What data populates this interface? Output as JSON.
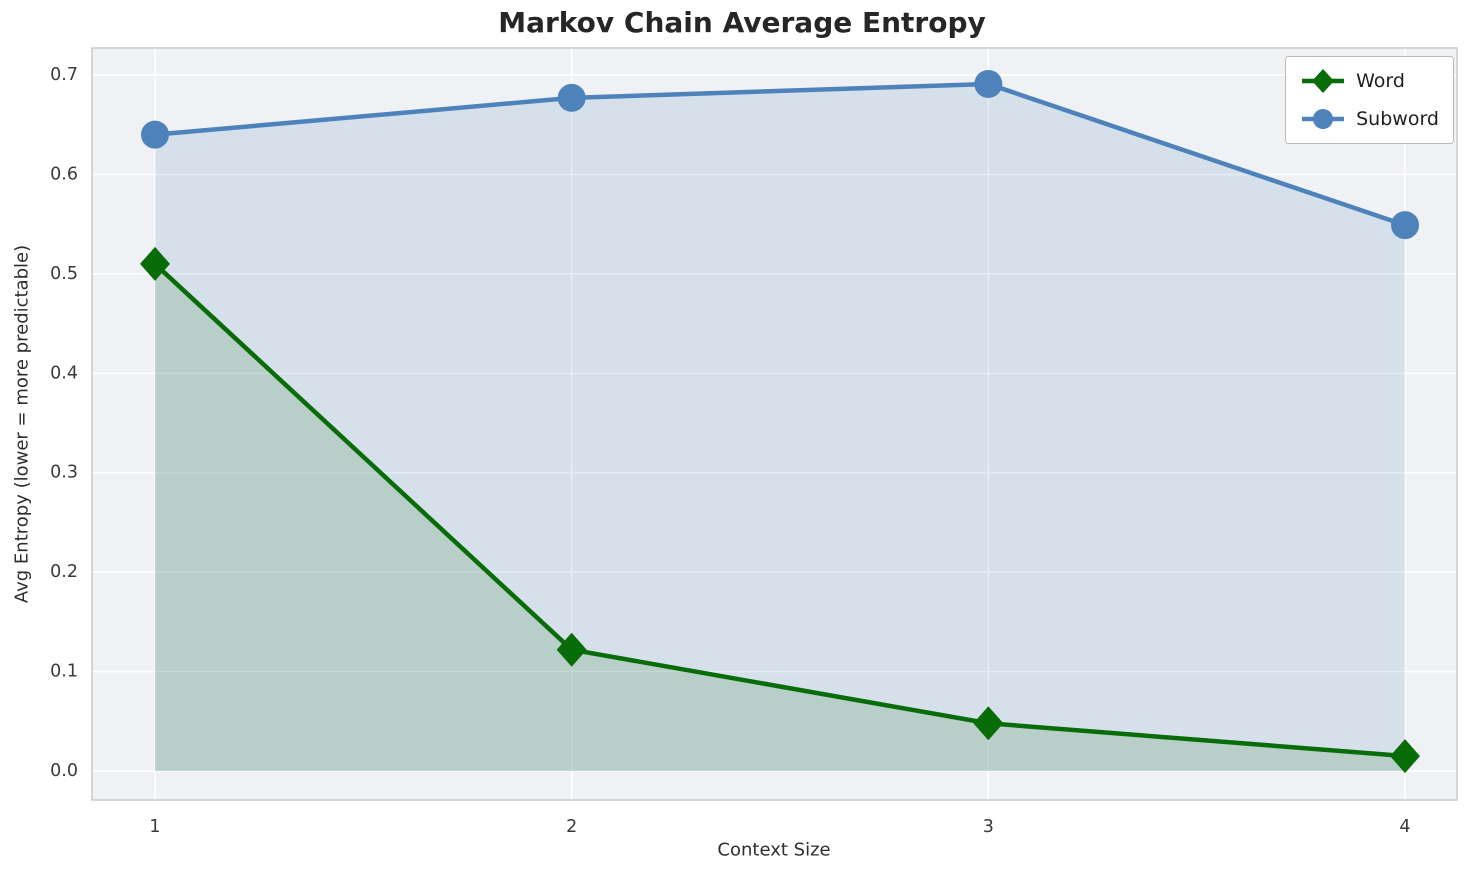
{
  "chart_data": {
    "type": "line",
    "title": "Markov Chain Average Entropy",
    "xlabel": "Context Size",
    "ylabel": "Avg Entropy (lower = more predictable)",
    "x": [
      1,
      2,
      3,
      4
    ],
    "series": [
      {
        "name": "Word",
        "marker": "diamond",
        "color": "#086c08",
        "fill_opacity": 0.15,
        "values": [
          0.51,
          0.122,
          0.048,
          0.015
        ]
      },
      {
        "name": "Subword",
        "marker": "circle",
        "color": "#4d82ba",
        "fill_opacity": 0.15,
        "values": [
          0.64,
          0.677,
          0.691,
          0.549
        ]
      }
    ],
    "xticks": [
      1,
      2,
      3,
      4
    ],
    "yticks": [
      0.0,
      0.1,
      0.2,
      0.3,
      0.4,
      0.5,
      0.6,
      0.7
    ],
    "ytick_labels": [
      "0.0",
      "0.1",
      "0.2",
      "0.3",
      "0.4",
      "0.5",
      "0.6",
      "0.7"
    ],
    "ylim": [
      -0.03,
      0.727
    ],
    "xlim": [
      0.85,
      4.12
    ],
    "grid": true,
    "legend_position": "upper right",
    "plot_bg": "#eff1f4",
    "grid_color": "#ffffff",
    "spine_color": "#c9c9c9",
    "tick_label_color": "#3a3a3a"
  }
}
